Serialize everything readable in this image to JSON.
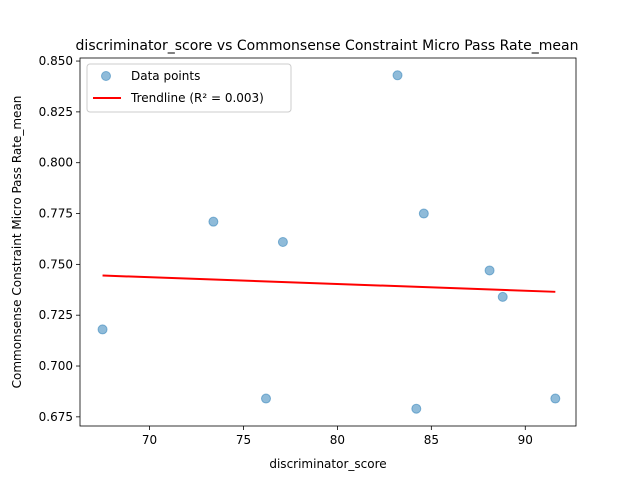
{
  "chart_data": {
    "type": "scatter",
    "title": "discriminator_score vs Commonsense Constraint Micro Pass Rate_mean",
    "xlabel": "discriminator_score",
    "ylabel": "Commonsense Constraint Micro Pass Rate_mean",
    "xlim": [
      66.3,
      92.7
    ],
    "ylim": [
      0.6705,
      0.8515
    ],
    "x_ticks": [
      70,
      75,
      80,
      85,
      90
    ],
    "y_ticks": [
      0.675,
      0.7,
      0.725,
      0.75,
      0.775,
      0.8,
      0.825,
      0.85
    ],
    "x_tick_labels": [
      "70",
      "75",
      "80",
      "85",
      "90"
    ],
    "y_tick_labels": [
      "0.675",
      "0.700",
      "0.725",
      "0.750",
      "0.775",
      "0.800",
      "0.825",
      "0.850"
    ],
    "grid": false,
    "legend_position": "top-left",
    "series": [
      {
        "name": "Data points",
        "kind": "scatter",
        "color": "#1f77b4",
        "points": [
          {
            "x": 67.5,
            "y": 0.718
          },
          {
            "x": 73.4,
            "y": 0.771
          },
          {
            "x": 76.2,
            "y": 0.684
          },
          {
            "x": 77.1,
            "y": 0.761
          },
          {
            "x": 83.2,
            "y": 0.843
          },
          {
            "x": 84.2,
            "y": 0.679
          },
          {
            "x": 84.6,
            "y": 0.775
          },
          {
            "x": 88.1,
            "y": 0.747
          },
          {
            "x": 88.8,
            "y": 0.734
          },
          {
            "x": 91.6,
            "y": 0.684
          }
        ]
      },
      {
        "name": "Trendline (R² = 0.003)",
        "kind": "line",
        "color": "#ff0000",
        "points": [
          {
            "x": 67.5,
            "y": 0.7445
          },
          {
            "x": 91.6,
            "y": 0.7365
          }
        ]
      }
    ]
  }
}
